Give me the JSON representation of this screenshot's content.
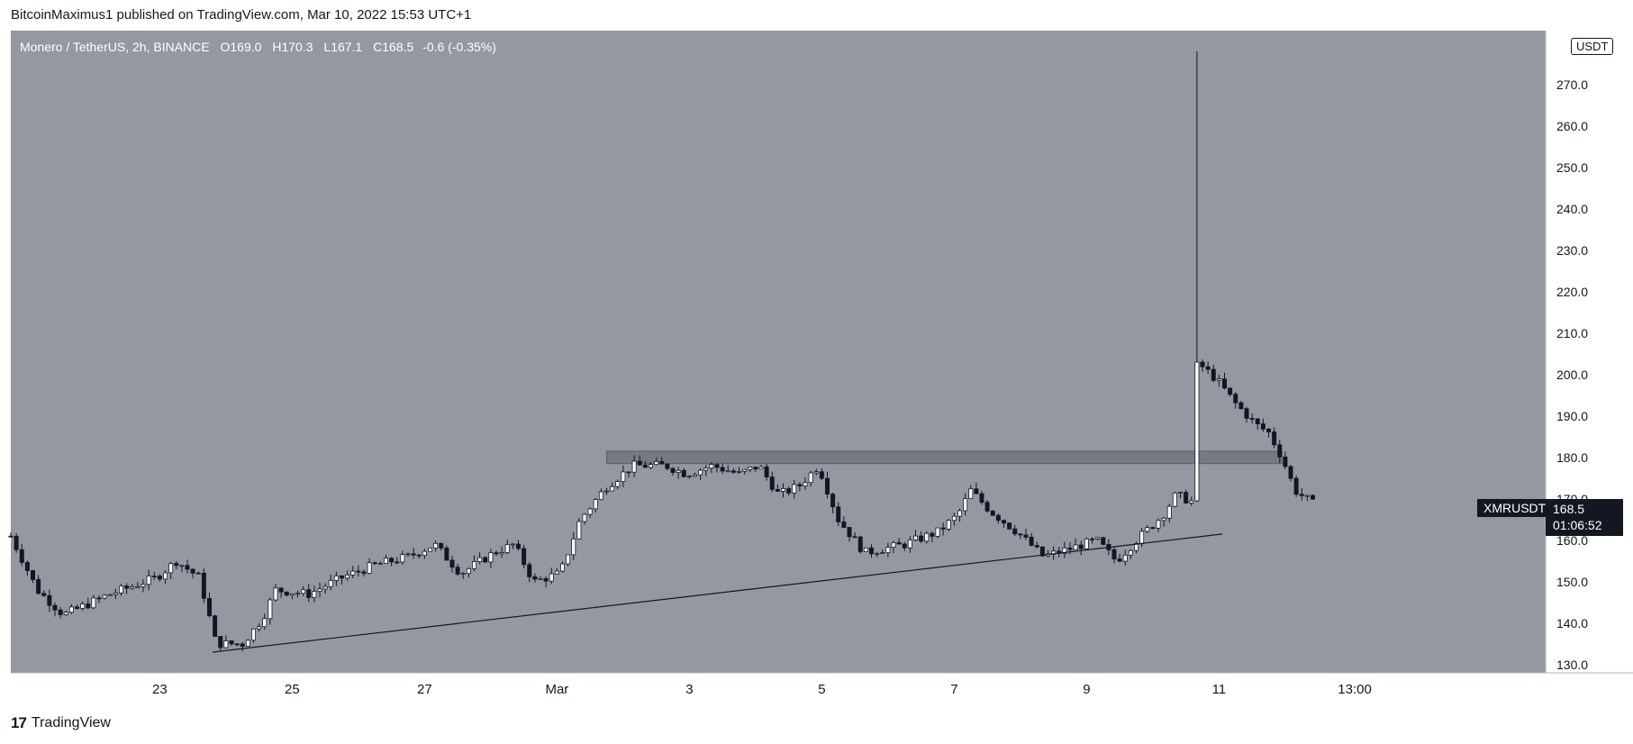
{
  "header": {
    "published_line": "BitcoinMaximus1 published on TradingView.com, Mar 10, 2022 15:53 UTC+1"
  },
  "footer": {
    "logo_glyph": "17",
    "brand": "TradingView"
  },
  "legend": {
    "symbol": "Monero / TetherUS, 2h, BINANCE",
    "open_key": "O",
    "open": "169.0",
    "high_key": "H",
    "high": "170.3",
    "low_key": "L",
    "low": "167.1",
    "close_key": "C",
    "close": "168.5",
    "change": "-0.6 (-0.35%)"
  },
  "price_axis": {
    "unit": "USDT",
    "ticks": [
      "130.0",
      "140.0",
      "150.0",
      "160.0",
      "170.0",
      "180.0",
      "190.0",
      "200.0",
      "210.0",
      "220.0",
      "230.0",
      "240.0",
      "250.0",
      "260.0",
      "270.0"
    ]
  },
  "last_price": {
    "ticker": "XMRUSDT",
    "price": "168.5",
    "countdown": "01:06:52"
  },
  "time_axis": {
    "ticks": [
      "23",
      "25",
      "27",
      "Mar",
      "3",
      "5",
      "7",
      "9",
      "11",
      "13:00"
    ]
  },
  "colors": {
    "background": "#9598a1",
    "up_body": "#ffffff",
    "down_body": "#131722",
    "wick": "#131722",
    "zone": "#6e7079"
  },
  "chart_data": {
    "type": "candlestick",
    "symbol": "XMRUSDT",
    "interval": "2h",
    "ylim": [
      128,
      283
    ],
    "x_range_days": [
      "Feb 21",
      "Mar 12"
    ],
    "resistance_zone": {
      "low": 178.5,
      "high": 181.5,
      "from_day": 9.0,
      "to_day": 19.2
    },
    "ascending_support": {
      "from": {
        "day": 3.05,
        "price": 133
      },
      "to": {
        "day": 18.3,
        "price": 161.5
      }
    },
    "waypoints": [
      {
        "d": 0.0,
        "p": 161
      },
      {
        "d": 0.4,
        "p": 148
      },
      {
        "d": 0.8,
        "p": 142
      },
      {
        "d": 1.5,
        "p": 147
      },
      {
        "d": 2.2,
        "p": 151
      },
      {
        "d": 2.5,
        "p": 155
      },
      {
        "d": 2.85,
        "p": 151
      },
      {
        "d": 3.1,
        "p": 135
      },
      {
        "d": 3.5,
        "p": 135
      },
      {
        "d": 3.8,
        "p": 141
      },
      {
        "d": 4.0,
        "p": 148
      },
      {
        "d": 4.5,
        "p": 147
      },
      {
        "d": 5.0,
        "p": 151
      },
      {
        "d": 5.5,
        "p": 154
      },
      {
        "d": 6.0,
        "p": 156
      },
      {
        "d": 6.4,
        "p": 159
      },
      {
        "d": 6.8,
        "p": 152
      },
      {
        "d": 7.3,
        "p": 157
      },
      {
        "d": 7.6,
        "p": 159
      },
      {
        "d": 7.9,
        "p": 150
      },
      {
        "d": 8.3,
        "p": 152
      },
      {
        "d": 8.6,
        "p": 165
      },
      {
        "d": 9.0,
        "p": 173
      },
      {
        "d": 9.4,
        "p": 178
      },
      {
        "d": 9.9,
        "p": 178
      },
      {
        "d": 10.2,
        "p": 176
      },
      {
        "d": 10.6,
        "p": 178
      },
      {
        "d": 11.0,
        "p": 176
      },
      {
        "d": 11.3,
        "p": 178
      },
      {
        "d": 11.6,
        "p": 171
      },
      {
        "d": 11.9,
        "p": 173
      },
      {
        "d": 12.2,
        "p": 178
      },
      {
        "d": 12.5,
        "p": 165
      },
      {
        "d": 12.9,
        "p": 157
      },
      {
        "d": 13.5,
        "p": 159
      },
      {
        "d": 14.0,
        "p": 162
      },
      {
        "d": 14.3,
        "p": 166
      },
      {
        "d": 14.5,
        "p": 172
      },
      {
        "d": 14.8,
        "p": 167
      },
      {
        "d": 15.2,
        "p": 162
      },
      {
        "d": 15.6,
        "p": 156
      },
      {
        "d": 16.0,
        "p": 158
      },
      {
        "d": 16.4,
        "p": 160
      },
      {
        "d": 16.7,
        "p": 155
      },
      {
        "d": 17.0,
        "p": 160
      },
      {
        "d": 17.4,
        "p": 166
      },
      {
        "d": 17.6,
        "p": 171
      },
      {
        "d": 17.88,
        "p": 169
      },
      {
        "d": 17.92,
        "p": 203
      },
      {
        "d": 18.2,
        "p": 199
      },
      {
        "d": 18.5,
        "p": 193
      },
      {
        "d": 18.8,
        "p": 188
      },
      {
        "d": 19.0,
        "p": 186
      },
      {
        "d": 19.2,
        "p": 180
      },
      {
        "d": 19.4,
        "p": 172
      },
      {
        "d": 19.7,
        "p": 168.5
      }
    ],
    "spike": {
      "day": 17.92,
      "high": 278
    }
  }
}
